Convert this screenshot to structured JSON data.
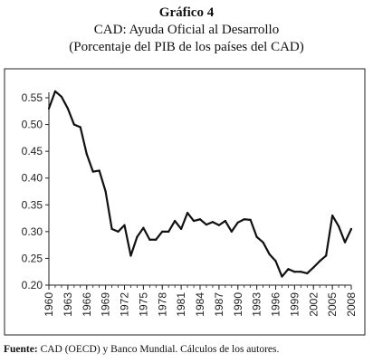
{
  "header": {
    "figure_label": "Gráfico 4",
    "title": "CAD: Ayuda Oficial al Desarrollo",
    "subtitle": "(Porcentaje del PIB de los países del CAD)"
  },
  "footer": {
    "source_label": "Fuente:",
    "source_text": " CAD (OECD) y Banco Mundial. Cálculos de los autores."
  },
  "chart_data": {
    "type": "line",
    "title": "CAD: Ayuda Oficial al Desarrollo",
    "subtitle": "(Porcentaje del PIB de los países del CAD)",
    "xlabel": "",
    "ylabel": "",
    "xlim": [
      1960,
      2008
    ],
    "ylim": [
      0.2,
      0.55
    ],
    "grid": false,
    "line_color": "#111111",
    "y_ticks": [
      "0.20",
      "0.25",
      "0.30",
      "0.35",
      "0.40",
      "0.45",
      "0.50",
      "0.55"
    ],
    "x_ticks": [
      "1960",
      "1963",
      "1966",
      "1969",
      "1972",
      "1975",
      "1978",
      "1981",
      "1984",
      "1987",
      "1990",
      "1993",
      "1996",
      "1999",
      "2002",
      "2005",
      "2008"
    ],
    "x": [
      1960,
      1961,
      1962,
      1963,
      1964,
      1965,
      1966,
      1967,
      1968,
      1969,
      1970,
      1971,
      1972,
      1973,
      1974,
      1975,
      1976,
      1977,
      1978,
      1979,
      1980,
      1981,
      1982,
      1983,
      1984,
      1985,
      1986,
      1987,
      1988,
      1989,
      1990,
      1991,
      1992,
      1993,
      1994,
      1995,
      1996,
      1997,
      1998,
      1999,
      2000,
      2001,
      2002,
      2003,
      2004,
      2005,
      2006,
      2007,
      2008
    ],
    "y": [
      0.53,
      0.562,
      0.552,
      0.53,
      0.5,
      0.495,
      0.445,
      0.412,
      0.414,
      0.375,
      0.305,
      0.3,
      0.312,
      0.255,
      0.29,
      0.307,
      0.285,
      0.285,
      0.3,
      0.3,
      0.32,
      0.305,
      0.335,
      0.32,
      0.323,
      0.313,
      0.318,
      0.312,
      0.32,
      0.3,
      0.317,
      0.323,
      0.322,
      0.29,
      0.28,
      0.258,
      0.245,
      0.216,
      0.23,
      0.225,
      0.225,
      0.222,
      0.233,
      0.245,
      0.255,
      0.33,
      0.31,
      0.28,
      0.305
    ]
  }
}
